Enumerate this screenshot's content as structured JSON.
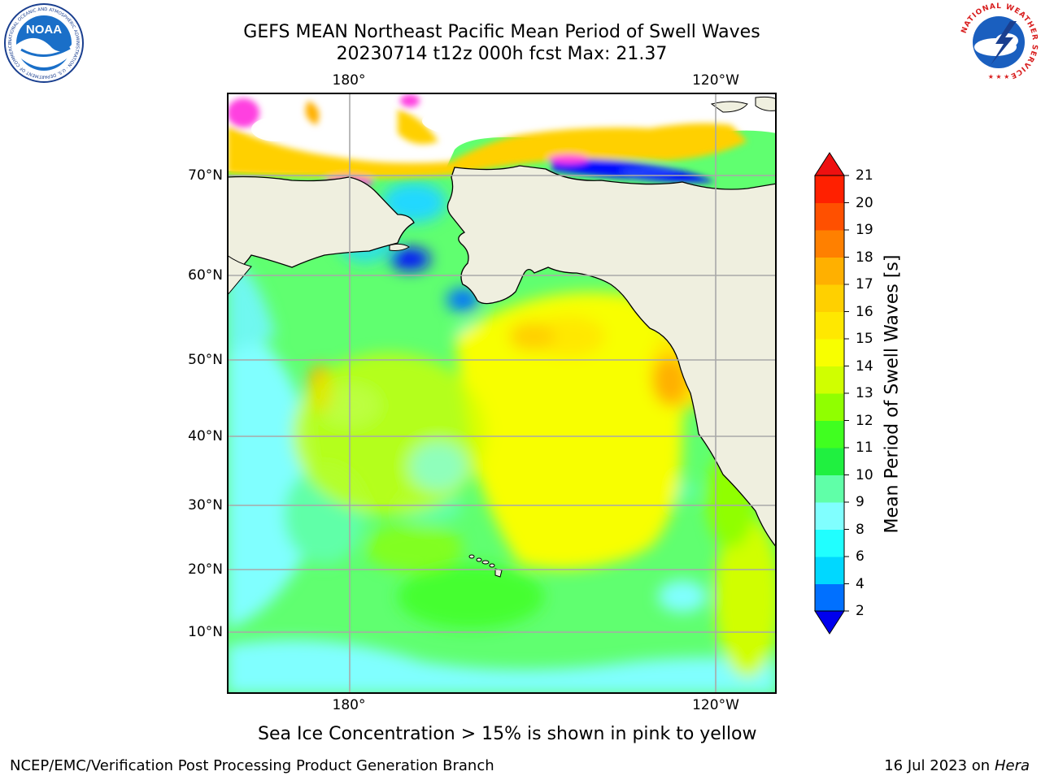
{
  "title": {
    "line1": "GEFS MEAN Northeast Pacific Mean Period of Swell Waves",
    "line2": "20230714 t12z 000h fcst   Max: 21.37"
  },
  "map": {
    "lon_labels_top": [
      "180°",
      "120°W"
    ],
    "lon_labels_bottom": [
      "180°",
      "120°W"
    ],
    "lat_labels": [
      "70°N",
      "60°N",
      "50°N",
      "40°N",
      "30°N",
      "20°N",
      "10°N"
    ],
    "land_color": "#efefdf",
    "features": [
      "North America",
      "Alaska",
      "Chukotka",
      "Hawaiian Islands",
      "Arctic sea ice"
    ]
  },
  "colorbar": {
    "ticks": [
      "2",
      "4",
      "6",
      "8",
      "9",
      "10",
      "11",
      "12",
      "13",
      "14",
      "15",
      "16",
      "17",
      "18",
      "19",
      "20",
      "21"
    ],
    "colors": [
      "#0010ff",
      "#0070ff",
      "#00d8ff",
      "#20ffff",
      "#80ffff",
      "#60ffa8",
      "#20f040",
      "#40ff20",
      "#90ff00",
      "#d0ff00",
      "#f8ff00",
      "#ffe800",
      "#ffd000",
      "#ffb000",
      "#ff8000",
      "#ff5000",
      "#ff2000"
    ],
    "under_color": "#0000ee",
    "over_color": "#ee1010",
    "label": "Mean Period of Swell Waves [s]"
  },
  "note": "Sea Ice Concentration > 15% is shown in pink to yellow",
  "footer": {
    "left": "NCEP/EMC/Verification Post Processing Product Generation Branch",
    "date": "16 Jul 2023 on ",
    "host": "Hera"
  },
  "logos": {
    "noaa_text": "NOAA",
    "noaa_ring": "NATIONAL OCEANIC AND ATMOSPHERIC ADMINISTRATION · U.S. DEPARTMENT OF COMMERCE",
    "nws_ring": "NATIONAL WEATHER SERVICE"
  }
}
